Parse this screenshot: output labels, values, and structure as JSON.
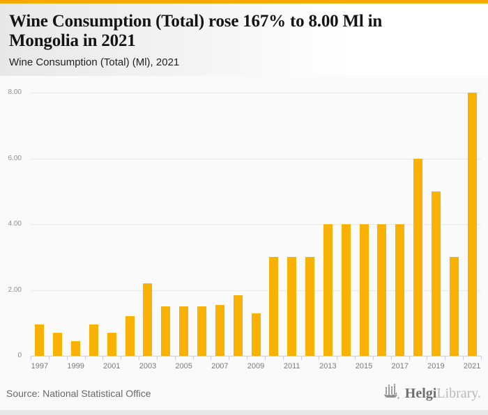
{
  "page": {
    "accent_color": "#f6a900",
    "background_color": "#fafafa",
    "axis_color": "#c9cfe7",
    "gridline_color": "#e7e7e7"
  },
  "header": {
    "title_line1": "Wine Consumption (Total) rose 167% to 8.00 Ml in",
    "title_line2": "Mongolia in 2021",
    "subtitle": "Wine Consumption (Total) (Ml), 2021"
  },
  "chart_data": {
    "type": "bar",
    "title": "Wine Consumption (Total) (Ml), 2021",
    "xlabel": "",
    "ylabel": "",
    "ylim": [
      0,
      8
    ],
    "grid": "horizontal",
    "legend": "none",
    "bar_color": "#f9b104",
    "categories": [
      "1997",
      "1998",
      "1999",
      "2000",
      "2001",
      "2002",
      "2003",
      "2004",
      "2005",
      "2006",
      "2007",
      "2008",
      "2009",
      "2010",
      "2011",
      "2012",
      "2013",
      "2014",
      "2015",
      "2016",
      "2017",
      "2018",
      "2019",
      "2020",
      "2021"
    ],
    "values": [
      0.95,
      0.7,
      0.45,
      0.95,
      0.7,
      1.2,
      2.2,
      1.5,
      1.5,
      1.5,
      1.55,
      1.85,
      1.3,
      3.0,
      3.0,
      3.0,
      4.0,
      4.0,
      4.0,
      4.0,
      4.0,
      6.0,
      5.0,
      3.0,
      8.0
    ],
    "y_tick_labels": [
      "0",
      "2.00",
      "4.00",
      "6.00",
      "8.00"
    ],
    "x_tick_labels": [
      "1997",
      "1999",
      "2001",
      "2003",
      "2005",
      "2007",
      "2009",
      "2011",
      "2013",
      "2015",
      "2017",
      "2019",
      "2021"
    ]
  },
  "footer": {
    "source": "Source: National Statistical Office",
    "logo": {
      "icon": "helgi-ship-bars-icon",
      "name_dark": "Helgi",
      "name_light": "Library."
    }
  }
}
